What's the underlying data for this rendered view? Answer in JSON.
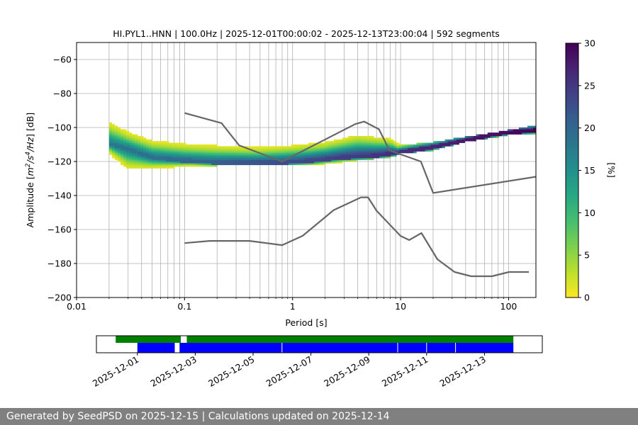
{
  "chart_data": [
    {
      "type": "heatmap",
      "title": "HI.PYL1..HNN | 100.0Hz | 2025-12-01T00:00:02 - 2025-12-13T23:00:04 | 592 segments",
      "xlabel": "Period [s]",
      "ylabel_parts": [
        "Amplitude [",
        "m",
        "2",
        "/",
        "s",
        "4",
        "/",
        "Hz",
        "] [dB]"
      ],
      "x_scale": "log",
      "xlim": [
        0.01,
        179
      ],
      "ylim": [
        -200,
        -50
      ],
      "x_ticks": [
        0.01,
        0.1,
        1,
        10,
        100
      ],
      "x_tick_labels": [
        "0.01",
        "0.1",
        "1",
        "10",
        "100"
      ],
      "y_ticks": [
        -200,
        -180,
        -160,
        -140,
        -120,
        -100,
        -80,
        -60
      ],
      "y_tick_labels": [
        "−200",
        "−180",
        "−160",
        "−140",
        "−120",
        "−100",
        "−80",
        "−60"
      ],
      "grid": true,
      "colorbar": {
        "label": "[%]",
        "range": [
          0,
          30
        ],
        "ticks": [
          0,
          5,
          10,
          15,
          20,
          25,
          30
        ],
        "tick_labels": [
          "0",
          "5",
          "10",
          "15",
          "20",
          "25",
          "30"
        ],
        "colormap": "viridis_r"
      },
      "psd_mode": {
        "period": [
          0.02,
          0.03,
          0.05,
          0.1,
          0.2,
          0.5,
          0.8,
          1.5,
          3,
          6,
          10,
          20,
          40,
          80,
          179
        ],
        "db": [
          -110,
          -113,
          -118,
          -120,
          -121,
          -121,
          -121,
          -120,
          -118,
          -117,
          -115,
          -112,
          -108,
          -104,
          -102
        ]
      },
      "psd_spread": {
        "period": [
          0.02,
          0.03,
          0.05,
          0.1,
          0.2,
          0.5,
          1,
          2,
          4,
          8,
          10,
          20,
          40,
          100,
          179
        ],
        "upper_db": [
          -98,
          -104,
          -109,
          -111,
          -112,
          -113,
          -112,
          -110,
          -106,
          -108,
          -112,
          -110,
          -107,
          -103,
          -100
        ],
        "lower_db": [
          -115,
          -124,
          -124,
          -123,
          -122,
          -122,
          -122,
          -121,
          -119,
          -117,
          -115,
          -113,
          -108,
          -104,
          -103
        ]
      },
      "new_high_noise_model": {
        "period": [
          0.1,
          0.22,
          0.32,
          0.8,
          3.8,
          4.6,
          6.3,
          7.9,
          15.4,
          20,
          354.8
        ],
        "db": [
          -91.5,
          -97.4,
          -110.5,
          -120,
          -98,
          -96.5,
          -101,
          -113.5,
          -120,
          -138.5,
          -126
        ]
      },
      "new_low_noise_model": {
        "period": [
          0.1,
          0.17,
          0.4,
          0.8,
          1.24,
          2.4,
          4.3,
          5,
          6,
          10,
          12,
          15.6,
          21.9,
          31.6,
          45,
          70,
          101,
          154
        ],
        "db": [
          -168,
          -166.7,
          -166.7,
          -169.2,
          -163.7,
          -148.6,
          -141.1,
          -141.1,
          -149,
          -163.8,
          -166.2,
          -162.1,
          -177.5,
          -185,
          -187.5,
          -187.5,
          -185,
          -185
        ]
      }
    },
    {
      "type": "timeline",
      "x_tick_labels": [
        "2025-12-01",
        "2025-12-03",
        "2025-12-05",
        "2025-12-07",
        "2025-12-09",
        "2025-12-11",
        "2025-12-13"
      ],
      "x_ticks": [
        "2025-12-01",
        "2025-12-03",
        "2025-12-05",
        "2025-12-07",
        "2025-12-09",
        "2025-12-11",
        "2025-12-13"
      ],
      "xlim": [
        "2025-11-29T14:00",
        "2025-12-15T00:00"
      ],
      "data_color": "#008000",
      "psd_color": "#0000ff",
      "data_coverage": [
        [
          "2025-11-30T06:00",
          "2025-12-02T12:00"
        ],
        [
          "2025-12-02T17:00",
          "2025-12-14T00:00"
        ]
      ],
      "psd_coverage": [
        [
          "2025-12-01T00:00",
          "2025-12-02T07:00"
        ],
        [
          "2025-12-02T11:00",
          "2025-12-14T00:00"
        ]
      ]
    }
  ],
  "colors": {
    "footer_bg": "#808080",
    "model_line": "#666666",
    "grid": "#b0b0b0"
  },
  "footer": {
    "text": "Generated by SeedPSD on 2025-12-15 | Calculations updated on 2025-12-14"
  }
}
